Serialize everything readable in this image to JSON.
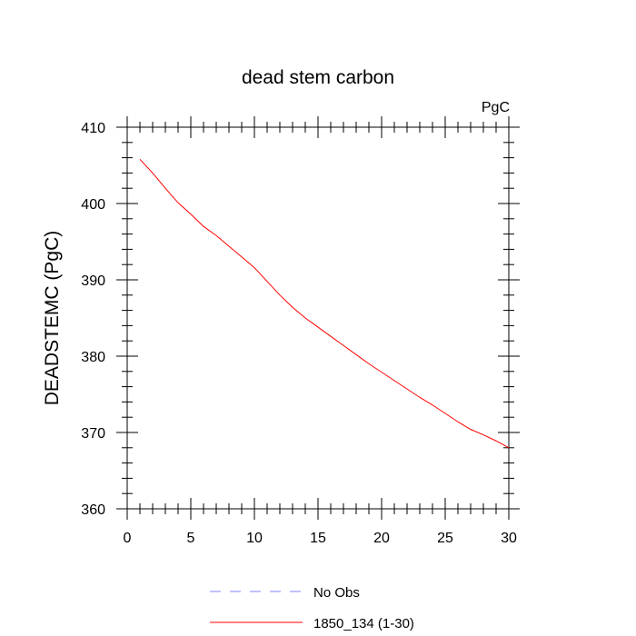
{
  "chart_data": {
    "type": "line",
    "title": "dead stem carbon",
    "units_label": "PgC",
    "ylabel": "DEADSTEMC  (PgC)",
    "xlabel": "",
    "xlim": [
      0,
      30
    ],
    "ylim": [
      360,
      410
    ],
    "xticks": [
      0,
      5,
      10,
      15,
      20,
      25,
      30
    ],
    "yticks": [
      360,
      370,
      380,
      390,
      400,
      410
    ],
    "grid": false,
    "legend_position": "bottom",
    "series": [
      {
        "name": "1850_134 (1-30)",
        "color": "#ff0000",
        "style": "solid",
        "x": [
          1,
          2,
          3,
          4,
          5,
          6,
          7,
          8,
          9,
          10,
          11,
          12,
          13,
          14,
          15,
          16,
          17,
          18,
          19,
          20,
          21,
          22,
          23,
          24,
          25,
          26,
          27,
          28,
          29,
          30
        ],
        "y": [
          405.8,
          404.0,
          402.0,
          400.1,
          398.6,
          397.0,
          395.8,
          394.4,
          393.0,
          391.6,
          389.8,
          388.0,
          386.4,
          385.0,
          383.8,
          382.6,
          381.4,
          380.2,
          379.0,
          377.9,
          376.8,
          375.7,
          374.6,
          373.6,
          372.5,
          371.4,
          370.4,
          369.7,
          368.9,
          368.0
        ]
      },
      {
        "name": "No Obs",
        "color": "#8080ff",
        "style": "dashed",
        "x": [],
        "y": []
      }
    ]
  }
}
